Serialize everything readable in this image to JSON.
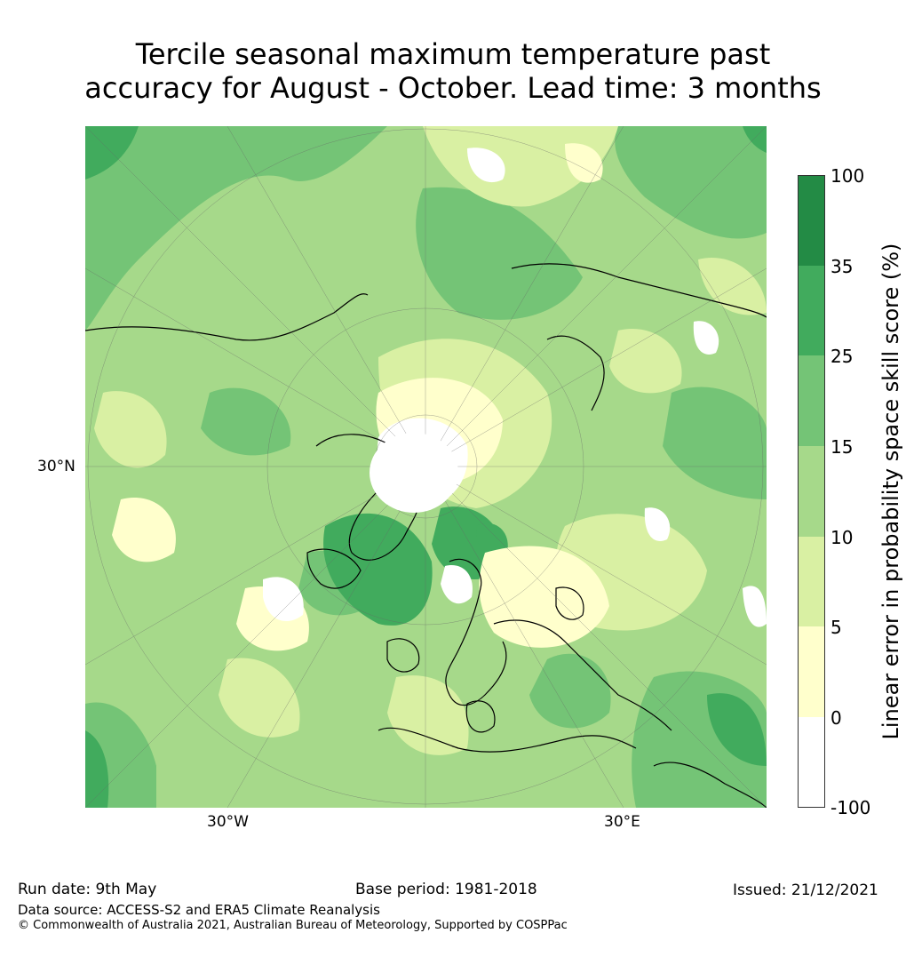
{
  "title": {
    "line1": "Tercile seasonal maximum temperature past",
    "line2": "accuracy for August - October. Lead time: 3 months"
  },
  "map": {
    "lat_label": "30°N",
    "lon_labels": {
      "west": "30°W",
      "east": "30°E"
    },
    "region_colors": {
      "land_outline": "#000000",
      "grid": "#666666"
    }
  },
  "colorbar": {
    "label": "Linear error in probability space skill score (%)",
    "ticks": [
      "100",
      "35",
      "25",
      "15",
      "10",
      "5",
      "0",
      "-100"
    ],
    "colors": [
      "#238b45",
      "#41ab5d",
      "#74c476",
      "#a6d98a",
      "#d9f0a3",
      "#ffffcc",
      "#ffffff"
    ]
  },
  "footer": {
    "run_date": "Run date: 9th May",
    "base_period": "Base period: 1981-2018",
    "issued": "Issued: 21/12/2021",
    "data_source": "Data source: ACCESS-S2 and ERA5 Climate Reanalysis",
    "copyright": "© Commonwealth of Australia 2021, Australian Bureau of Meteorology, Supported by COSPPac"
  }
}
